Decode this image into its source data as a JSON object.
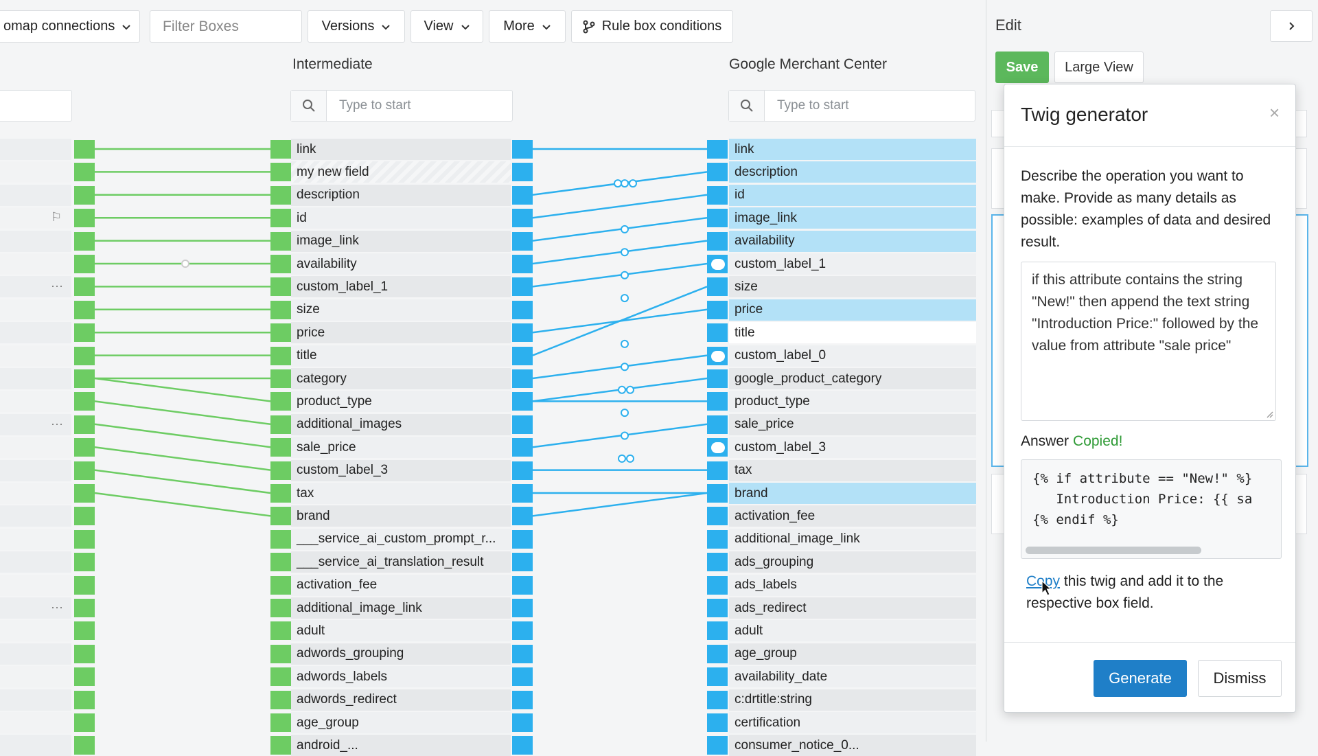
{
  "toolbar": {
    "connections_label": "omap connections",
    "filter_placeholder": "Filter Boxes",
    "versions_label": "Versions",
    "view_label": "View",
    "more_label": "More",
    "rule_label": "Rule box conditions"
  },
  "columns": {
    "intermediate": {
      "title": "Intermediate",
      "search_placeholder": "Type to start",
      "fields": [
        "link",
        "my new field",
        "description",
        "id",
        "image_link",
        "availability",
        "custom_label_1",
        "size",
        "price",
        "title",
        "category",
        "product_type",
        "additional_images",
        "sale_price",
        "custom_label_3",
        "tax",
        "brand",
        "___service_ai_custom_prompt_r...",
        "___service_ai_translation_result",
        "activation_fee",
        "additional_image_link",
        "adult",
        "adwords_grouping",
        "adwords_labels",
        "adwords_redirect",
        "age_group",
        "android_..."
      ]
    },
    "gmc": {
      "title": "Google Merchant Center",
      "search_placeholder": "Type to start",
      "fields": [
        "link",
        "description",
        "id",
        "image_link",
        "availability",
        "custom_label_1",
        "size",
        "price",
        "title",
        "custom_label_0",
        "google_product_category",
        "product_type",
        "sale_price",
        "custom_label_3",
        "tax",
        "brand",
        "activation_fee",
        "additional_image_link",
        "ads_grouping",
        "ads_labels",
        "ads_redirect",
        "adult",
        "age_group",
        "availability_date",
        "c:drtitle:string",
        "certification",
        "consumer_notice_0..."
      ],
      "highlighted": [
        "link",
        "description",
        "id",
        "image_link",
        "availability",
        "price",
        "brand"
      ]
    }
  },
  "edit_panel": {
    "title": "Edit",
    "save_label": "Save",
    "large_view_label": "Large View"
  },
  "modal": {
    "title": "Twig generator",
    "close_glyph": "×",
    "description": "Describe the operation you want to make. Provide as many details as possible: examples of data and desired result.",
    "prompt_value": "if this attribute contains the string \"New!\" then append the text string \"Introduction Price:\" followed by the value from attribute \"sale price\"",
    "answer_label": "Answer",
    "copied_label": "Copied!",
    "code_lines": [
      "{% if attribute == \"New!\" %}",
      "   Introduction Price: {{ sa",
      "{% endif %}"
    ],
    "copy_link": "Copy",
    "copy_text": " this twig and add it to the respective box field.",
    "generate_label": "Generate",
    "dismiss_label": "Dismiss"
  },
  "colors": {
    "green": "#6dcc63",
    "blue": "#2cb0ee",
    "highlight": "#b3e1f7",
    "save": "#5cb85c",
    "primary": "#1f7fc8"
  }
}
